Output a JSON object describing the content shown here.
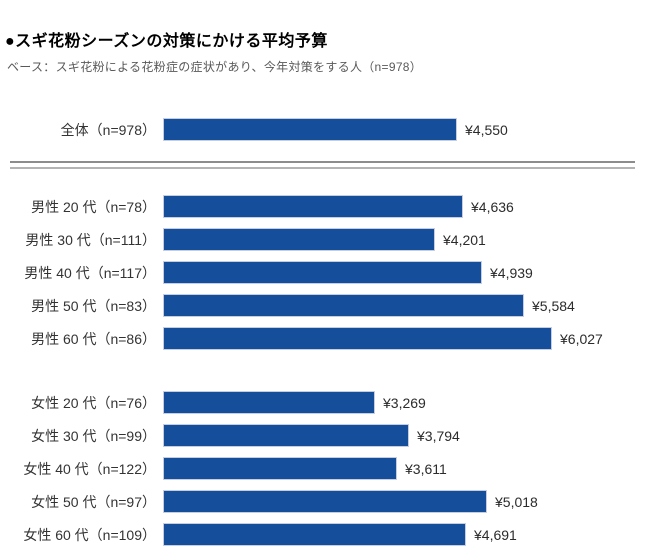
{
  "chart_data": {
    "type": "bar",
    "orientation": "horizontal",
    "title": "●スギ花粉シーズンの対策にかける平均予算",
    "subtitle": "ベース：スギ花粉による花粉症の症状があり、今年対策をする人（n=978）",
    "currency_prefix": "¥",
    "bar_color": "#154e9b",
    "bar_border_color": "#c6cde1",
    "xlim": [
      0,
      6027
    ],
    "grid": false,
    "legend": "none",
    "groups": [
      {
        "name": "overall",
        "rows": [
          {
            "label": "全体（n=978）",
            "value": 4550,
            "value_label": "¥4,550"
          }
        ]
      },
      {
        "name": "male",
        "rows": [
          {
            "label": "男性 20 代（n=78）",
            "value": 4636,
            "value_label": "¥4,636"
          },
          {
            "label": "男性 30 代（n=111）",
            "value": 4201,
            "value_label": "¥4,201"
          },
          {
            "label": "男性 40 代（n=117）",
            "value": 4939,
            "value_label": "¥4,939"
          },
          {
            "label": "男性 50 代（n=83）",
            "value": 5584,
            "value_label": "¥5,584"
          },
          {
            "label": "男性 60 代（n=86）",
            "value": 6027,
            "value_label": "¥6,027"
          }
        ]
      },
      {
        "name": "female",
        "rows": [
          {
            "label": "女性 20 代（n=76）",
            "value": 3269,
            "value_label": "¥3,269"
          },
          {
            "label": "女性 30 代（n=99）",
            "value": 3794,
            "value_label": "¥3,794"
          },
          {
            "label": "女性 40 代（n=122）",
            "value": 3611,
            "value_label": "¥3,611"
          },
          {
            "label": "女性 50 代（n=97）",
            "value": 5018,
            "value_label": "¥5,018"
          },
          {
            "label": "女性 60 代（n=109）",
            "value": 4691,
            "value_label": "¥4,691"
          }
        ]
      }
    ]
  }
}
